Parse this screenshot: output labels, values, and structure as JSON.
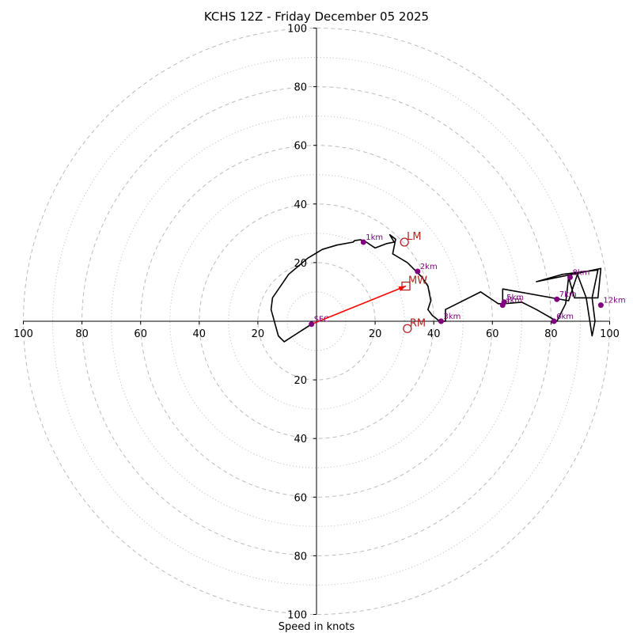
{
  "chart_data": {
    "type": "hodograph",
    "title": "KCHS 12Z - Friday December 05 2025",
    "xlabel": "Speed in knots",
    "units": "knots",
    "range": [
      -100,
      100
    ],
    "rings_major": [
      20,
      40,
      60,
      80,
      100
    ],
    "rings_minor": [
      10,
      30,
      50,
      70,
      90
    ],
    "x_tick_labels": [
      "100",
      "80",
      "60",
      "40",
      "20",
      "20",
      "40",
      "60",
      "80",
      "100"
    ],
    "y_tick_labels": [
      "100",
      "80",
      "60",
      "40",
      "20",
      "20",
      "40",
      "60",
      "80",
      "100"
    ],
    "trace": [
      [
        -1.7,
        -1.0
      ],
      [
        -11,
        -7
      ],
      [
        -13,
        -5
      ],
      [
        -15.5,
        4
      ],
      [
        -15,
        8
      ],
      [
        -9.5,
        16
      ],
      [
        -3,
        21.5
      ],
      [
        2,
        24.5
      ],
      [
        7,
        26
      ],
      [
        12.5,
        27
      ],
      [
        13,
        27.5
      ],
      [
        15,
        27.8
      ],
      [
        17,
        27
      ],
      [
        20,
        25
      ],
      [
        24,
        26.5
      ],
      [
        26.5,
        27
      ],
      [
        25,
        29.5
      ],
      [
        27,
        28
      ],
      [
        26,
        23
      ],
      [
        31,
        20
      ],
      [
        36,
        15
      ],
      [
        38,
        12
      ],
      [
        39,
        7
      ],
      [
        38,
        4
      ],
      [
        39.5,
        2
      ],
      [
        42,
        0
      ],
      [
        44,
        0
      ],
      [
        44,
        4
      ],
      [
        56,
        10
      ],
      [
        62,
        6
      ],
      [
        64,
        6
      ],
      [
        70,
        6.5
      ],
      [
        75,
        4
      ],
      [
        82,
        0
      ],
      [
        85,
        6
      ],
      [
        86,
        15
      ],
      [
        88,
        8
      ],
      [
        96,
        8
      ],
      [
        97,
        18
      ],
      [
        75,
        13.5
      ],
      [
        84,
        16
      ],
      [
        96,
        17.5
      ],
      [
        94,
        8
      ],
      [
        95,
        0
      ],
      [
        94,
        -5
      ],
      [
        92,
        8
      ],
      [
        89,
        16
      ],
      [
        86,
        7
      ],
      [
        63.5,
        11
      ],
      [
        63.5,
        6
      ]
    ],
    "height_markers": [
      {
        "label": "SFC",
        "u": -1.7,
        "v": -1.0
      },
      {
        "label": "1km",
        "u": 16,
        "v": 27
      },
      {
        "label": "2km",
        "u": 34.5,
        "v": 17
      },
      {
        "label": "3km",
        "u": 42.5,
        "v": 0
      },
      {
        "label": "5km",
        "u": 64,
        "v": 6.5
      },
      {
        "label": "4km",
        "u": 63.5,
        "v": 5.5
      },
      {
        "label": "6km",
        "u": 81,
        "v": 0
      },
      {
        "label": "7km",
        "u": 82,
        "v": 7.5
      },
      {
        "label": "8km",
        "u": 86.5,
        "v": 15
      },
      {
        "label": "12km",
        "u": 97,
        "v": 5.5
      }
    ],
    "storm_motion": {
      "lm": {
        "label": "LM",
        "u": 30,
        "v": 27
      },
      "mw": {
        "label": "MW",
        "u": 30.5,
        "v": 12
      },
      "rm": {
        "label": "RM",
        "u": 31,
        "v": -2.5
      }
    },
    "mean_wind_vector": {
      "from": [
        -1.7,
        -1.0
      ],
      "to": [
        30.5,
        12
      ]
    }
  },
  "colors": {
    "trace": "#000000",
    "markers": "#800080",
    "storm_motion": "#b22222",
    "vector": "#ff0000",
    "grid": "#bbbbbb",
    "axes": "#000000"
  }
}
